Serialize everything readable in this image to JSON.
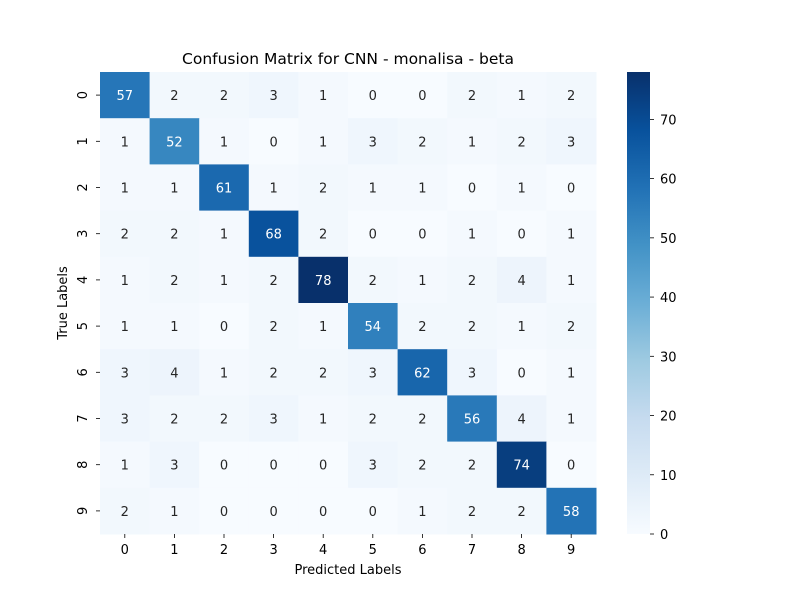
{
  "chart_data": {
    "type": "heatmap",
    "title": "Confusion Matrix for CNN - monalisa - beta",
    "xlabel": "Predicted Labels",
    "ylabel": "True Labels",
    "x_categories": [
      "0",
      "1",
      "2",
      "3",
      "4",
      "5",
      "6",
      "7",
      "8",
      "9"
    ],
    "y_categories": [
      "0",
      "1",
      "2",
      "3",
      "4",
      "5",
      "6",
      "7",
      "8",
      "9"
    ],
    "values": [
      [
        57,
        2,
        2,
        3,
        1,
        0,
        0,
        2,
        1,
        2
      ],
      [
        1,
        52,
        1,
        0,
        1,
        3,
        2,
        1,
        2,
        3
      ],
      [
        1,
        1,
        61,
        1,
        2,
        1,
        1,
        0,
        1,
        0
      ],
      [
        2,
        2,
        1,
        68,
        2,
        0,
        0,
        1,
        0,
        1
      ],
      [
        1,
        2,
        1,
        2,
        78,
        2,
        1,
        2,
        4,
        1
      ],
      [
        1,
        1,
        0,
        2,
        1,
        54,
        2,
        2,
        1,
        2
      ],
      [
        3,
        4,
        1,
        2,
        2,
        3,
        62,
        3,
        0,
        1
      ],
      [
        3,
        2,
        2,
        3,
        1,
        2,
        2,
        56,
        4,
        1
      ],
      [
        1,
        3,
        0,
        0,
        0,
        3,
        2,
        2,
        74,
        0
      ],
      [
        2,
        1,
        0,
        0,
        0,
        0,
        1,
        2,
        2,
        58
      ]
    ],
    "colorscale": "Blues",
    "vmin": 0,
    "vmax": 78,
    "colorbar_ticks": [
      "0",
      "10",
      "20",
      "30",
      "40",
      "50",
      "60",
      "70"
    ],
    "colorbar_tick_values": [
      0,
      10,
      20,
      30,
      40,
      50,
      60,
      70
    ],
    "annotations_visible": true
  }
}
